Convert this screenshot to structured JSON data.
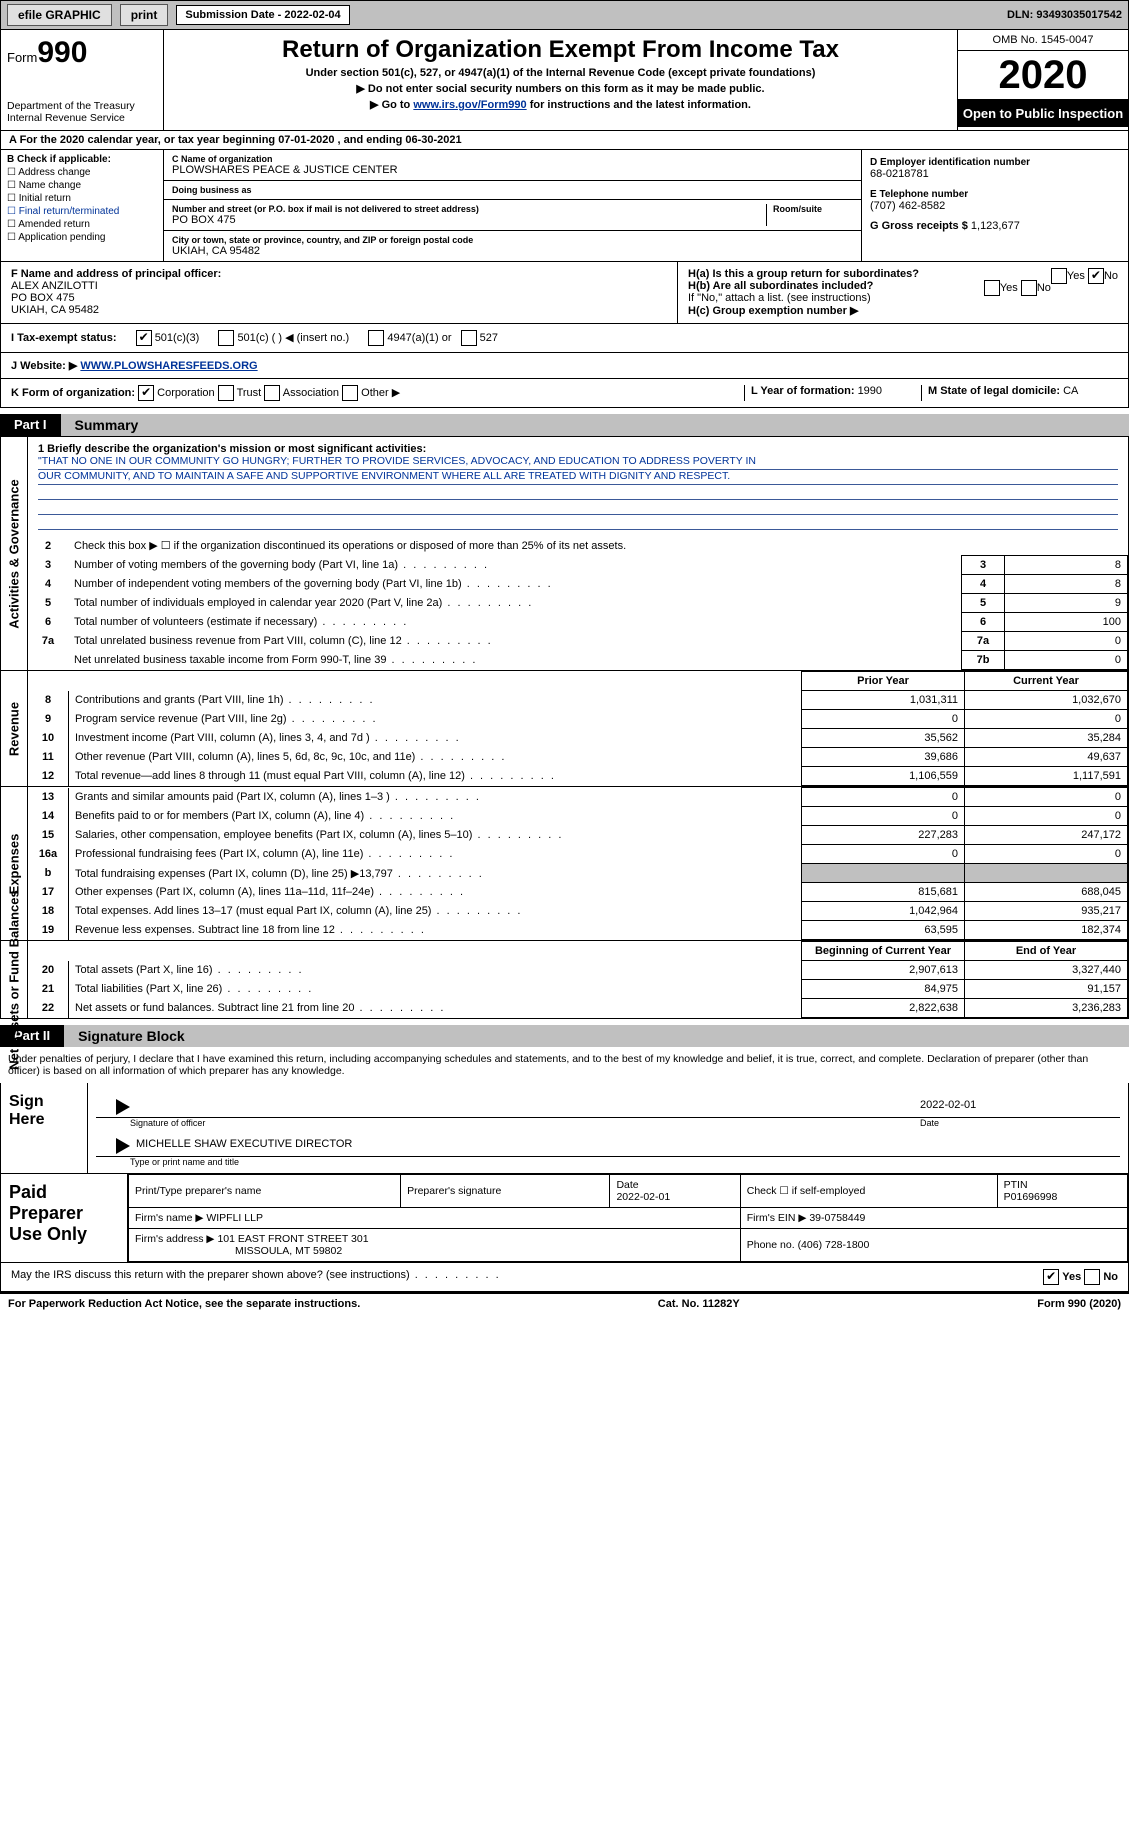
{
  "topbar": {
    "efile": "efile GRAPHIC",
    "print": "print",
    "submission_label": "Submission Date - 2022-02-04",
    "dln": "DLN: 93493035017542"
  },
  "header": {
    "form_prefix": "Form",
    "form_no": "990",
    "dept1": "Department of the Treasury",
    "dept2": "Internal Revenue Service",
    "title": "Return of Organization Exempt From Income Tax",
    "subtitle": "Under section 501(c), 527, or 4947(a)(1) of the Internal Revenue Code (except private foundations)",
    "note1": "▶ Do not enter social security numbers on this form as it may be made public.",
    "note2_pre": "▶ Go to ",
    "note2_link": "www.irs.gov/Form990",
    "note2_post": " for instructions and the latest information.",
    "omb": "OMB No. 1545-0047",
    "year": "2020",
    "open": "Open to Public Inspection"
  },
  "row_a": "A For the 2020 calendar year, or tax year beginning 07-01-2020    , and ending 06-30-2021",
  "box_b": {
    "title": "B Check if applicable:",
    "opts": [
      "Address change",
      "Name change",
      "Initial return",
      "Final return/terminated",
      "Amended return",
      "Application pending"
    ]
  },
  "box_c": {
    "name_label": "C Name of organization",
    "name": "PLOWSHARES PEACE & JUSTICE CENTER",
    "dba_label": "Doing business as",
    "addr_label": "Number and street (or P.O. box if mail is not delivered to street address)",
    "addr": "PO BOX 475",
    "room_label": "Room/suite",
    "city_label": "City or town, state or province, country, and ZIP or foreign postal code",
    "city": "UKIAH, CA   95482"
  },
  "box_d": {
    "label": "D Employer identification number",
    "val": "68-0218781",
    "phone_label": "E Telephone number",
    "phone": "(707) 462-8582",
    "gross_label": "G Gross receipts $",
    "gross": "1,123,677"
  },
  "box_f": {
    "label": "F  Name and address of principal officer:",
    "name": "ALEX ANZILOTTI",
    "addr1": "PO BOX 475",
    "addr2": "UKIAH, CA   95482"
  },
  "box_h": {
    "ha": "H(a)  Is this a group return for subordinates?",
    "hb": "H(b)  Are all subordinates included?",
    "hb_note": "If \"No,\" attach a list. (see instructions)",
    "hc": "H(c)  Group exemption number ▶",
    "yes": "Yes",
    "no": "No"
  },
  "row_i": {
    "label": "I   Tax-exempt status:",
    "o1": "501(c)(3)",
    "o2": "501(c) (   ) ◀ (insert no.)",
    "o3": "4947(a)(1) or",
    "o4": "527"
  },
  "row_j": {
    "label": "J   Website: ▶",
    "val": "WWW.PLOWSHARESFEEDS.ORG"
  },
  "row_k": {
    "label": "K Form of organization:",
    "o1": "Corporation",
    "o2": "Trust",
    "o3": "Association",
    "o4": "Other ▶",
    "l_label": "L Year of formation: ",
    "l_val": "1990",
    "m_label": "M State of legal domicile: ",
    "m_val": "CA"
  },
  "parts": {
    "p1": "Part I",
    "p1t": "Summary",
    "p2": "Part II",
    "p2t": "Signature Block"
  },
  "sides": {
    "gov": "Activities & Governance",
    "rev": "Revenue",
    "exp": "Expenses",
    "net": "Net Assets or Fund Balances"
  },
  "mission": {
    "q1": "1   Briefly describe the organization's mission or most significant activities:",
    "line1": "\"THAT NO ONE IN OUR COMMUNITY GO HUNGRY; FURTHER TO PROVIDE SERVICES, ADVOCACY, AND EDUCATION TO ADDRESS POVERTY IN",
    "line2": "OUR COMMUNITY, AND TO MAINTAIN A SAFE AND SUPPORTIVE ENVIRONMENT WHERE ALL ARE TREATED WITH DIGNITY AND RESPECT."
  },
  "gov_lines": [
    {
      "n": "2",
      "t": "Check this box ▶ ☐  if the organization discontinued its operations or disposed of more than 25% of its net assets."
    },
    {
      "n": "3",
      "t": "Number of voting members of the governing body (Part VI, line 1a)",
      "bn": "3",
      "bv": "8"
    },
    {
      "n": "4",
      "t": "Number of independent voting members of the governing body (Part VI, line 1b)",
      "bn": "4",
      "bv": "8"
    },
    {
      "n": "5",
      "t": "Total number of individuals employed in calendar year 2020 (Part V, line 2a)",
      "bn": "5",
      "bv": "9"
    },
    {
      "n": "6",
      "t": "Total number of volunteers (estimate if necessary)",
      "bn": "6",
      "bv": "100"
    },
    {
      "n": "7a",
      "t": "Total unrelated business revenue from Part VIII, column (C), line 12",
      "bn": "7a",
      "bv": "0"
    },
    {
      "n": "",
      "t": "Net unrelated business taxable income from Form 990-T, line 39",
      "bn": "7b",
      "bv": "0"
    }
  ],
  "fin_hdr_py": "Prior Year",
  "fin_hdr_cy": "Current Year",
  "rev_lines": [
    {
      "n": "8",
      "t": "Contributions and grants (Part VIII, line 1h)",
      "py": "1,031,311",
      "cy": "1,032,670"
    },
    {
      "n": "9",
      "t": "Program service revenue (Part VIII, line 2g)",
      "py": "0",
      "cy": "0"
    },
    {
      "n": "10",
      "t": "Investment income (Part VIII, column (A), lines 3, 4, and 7d )",
      "py": "35,562",
      "cy": "35,284"
    },
    {
      "n": "11",
      "t": "Other revenue (Part VIII, column (A), lines 5, 6d, 8c, 9c, 10c, and 11e)",
      "py": "39,686",
      "cy": "49,637"
    },
    {
      "n": "12",
      "t": "Total revenue—add lines 8 through 11 (must equal Part VIII, column (A), line 12)",
      "py": "1,106,559",
      "cy": "1,117,591"
    }
  ],
  "exp_lines": [
    {
      "n": "13",
      "t": "Grants and similar amounts paid (Part IX, column (A), lines 1–3 )",
      "py": "0",
      "cy": "0"
    },
    {
      "n": "14",
      "t": "Benefits paid to or for members (Part IX, column (A), line 4)",
      "py": "0",
      "cy": "0"
    },
    {
      "n": "15",
      "t": "Salaries, other compensation, employee benefits (Part IX, column (A), lines 5–10)",
      "py": "227,283",
      "cy": "247,172"
    },
    {
      "n": "16a",
      "t": "Professional fundraising fees (Part IX, column (A), line 11e)",
      "py": "0",
      "cy": "0"
    },
    {
      "n": "b",
      "t": "Total fundraising expenses (Part IX, column (D), line 25) ▶13,797",
      "py": "",
      "cy": "",
      "shade": true
    },
    {
      "n": "17",
      "t": "Other expenses (Part IX, column (A), lines 11a–11d, 11f–24e)",
      "py": "815,681",
      "cy": "688,045"
    },
    {
      "n": "18",
      "t": "Total expenses. Add lines 13–17 (must equal Part IX, column (A), line 25)",
      "py": "1,042,964",
      "cy": "935,217"
    },
    {
      "n": "19",
      "t": "Revenue less expenses. Subtract line 18 from line 12",
      "py": "63,595",
      "cy": "182,374"
    }
  ],
  "net_hdr_b": "Beginning of Current Year",
  "net_hdr_e": "End of Year",
  "net_lines": [
    {
      "n": "20",
      "t": "Total assets (Part X, line 16)",
      "py": "2,907,613",
      "cy": "3,327,440"
    },
    {
      "n": "21",
      "t": "Total liabilities (Part X, line 26)",
      "py": "84,975",
      "cy": "91,157"
    },
    {
      "n": "22",
      "t": "Net assets or fund balances. Subtract line 21 from line 20",
      "py": "2,822,638",
      "cy": "3,236,283"
    }
  ],
  "declare": "Under penalties of perjury, I declare that I have examined this return, including accompanying schedules and statements, and to the best of my knowledge and belief, it is true, correct, and complete. Declaration of preparer (other than officer) is based on all information of which preparer has any knowledge.",
  "sign": {
    "here": "Sign Here",
    "sig_label": "Signature of officer",
    "date": "2022-02-01",
    "date_label": "Date",
    "name": "MICHELLE SHAW  EXECUTIVE DIRECTOR",
    "name_label": "Type or print name and title"
  },
  "prep": {
    "title": "Paid Preparer Use Only",
    "h1": "Print/Type preparer's name",
    "h2": "Preparer's signature",
    "h3": "Date",
    "h3v": "2022-02-01",
    "h4": "Check ☐ if self-employed",
    "h5": "PTIN",
    "h5v": "P01696998",
    "firm_label": "Firm's name    ▶",
    "firm": "WIPFLI LLP",
    "ein_label": "Firm's EIN ▶",
    "ein": "39-0758449",
    "addr_label": "Firm's address ▶",
    "addr1": "101 EAST FRONT STREET 301",
    "addr2": "MISSOULA, MT  59802",
    "phone_label": "Phone no.",
    "phone": "(406) 728-1800"
  },
  "may": "May the IRS discuss this return with the preparer shown above? (see instructions)",
  "footer": {
    "left": "For Paperwork Reduction Act Notice, see the separate instructions.",
    "mid": "Cat. No. 11282Y",
    "right": "Form 990 (2020)"
  }
}
